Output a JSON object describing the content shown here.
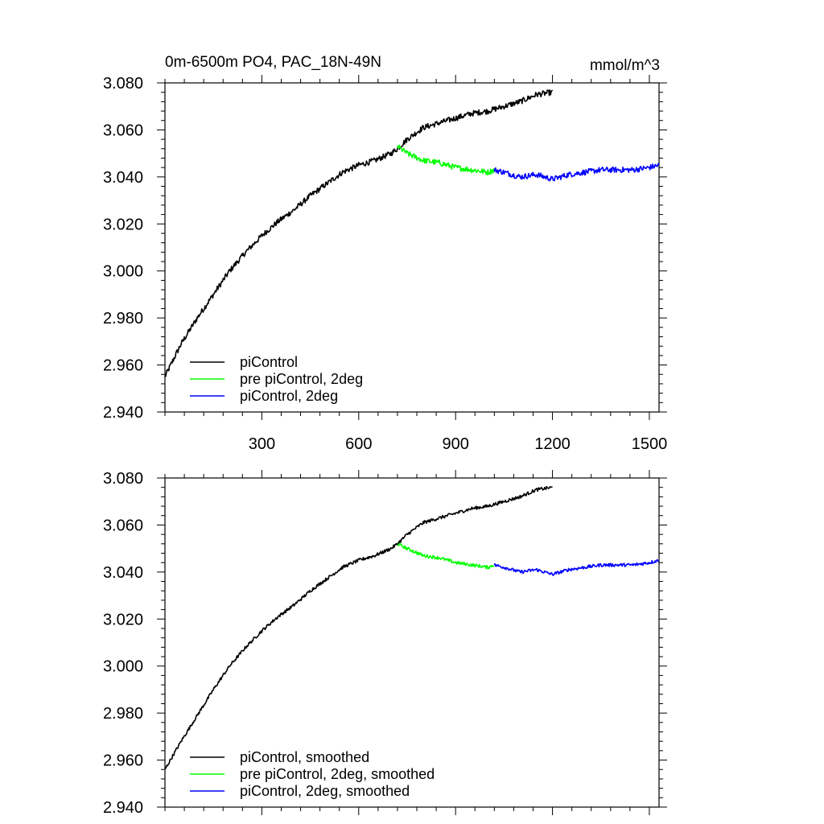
{
  "chart_data": [
    {
      "type": "line",
      "title": "0m-6500m PO4, PAC_18N-49N",
      "units": "mmol/m^3",
      "xlabel": "",
      "ylabel": "",
      "xlim": [
        0,
        1530
      ],
      "ylim": [
        2.94,
        3.08
      ],
      "xticks": [
        300,
        600,
        900,
        1200,
        1500
      ],
      "xtick_labels": [
        "300",
        "600",
        "900",
        "1200",
        "1500"
      ],
      "yticks": [
        2.94,
        2.96,
        2.98,
        3.0,
        3.02,
        3.04,
        3.06,
        3.08
      ],
      "ytick_labels": [
        "2.940",
        "2.960",
        "2.980",
        "3.000",
        "3.020",
        "3.040",
        "3.060",
        "3.080"
      ],
      "legend_position": "bottom-left",
      "series": [
        {
          "name": "piControl",
          "color": "#000000",
          "x": [
            0,
            50,
            100,
            150,
            200,
            250,
            300,
            350,
            400,
            450,
            500,
            550,
            600,
            650,
            700,
            720,
            750,
            800,
            850,
            900,
            950,
            1000,
            1050,
            1100,
            1150,
            1200
          ],
          "y": [
            2.955,
            2.969,
            2.98,
            2.99,
            3.0,
            3.008,
            3.015,
            3.021,
            3.026,
            3.032,
            3.037,
            3.042,
            3.045,
            3.047,
            3.05,
            3.052,
            3.056,
            3.061,
            3.063,
            3.065,
            3.067,
            3.068,
            3.07,
            3.072,
            3.075,
            3.076
          ]
        },
        {
          "name": "pre piControl, 2deg",
          "color": "#00ff00",
          "x": [
            720,
            750,
            800,
            850,
            900,
            950,
            1000,
            1020
          ],
          "y": [
            3.053,
            3.05,
            3.047,
            3.046,
            3.044,
            3.043,
            3.042,
            3.043
          ]
        },
        {
          "name": "piControl, 2deg",
          "color": "#0000ff",
          "x": [
            1020,
            1050,
            1100,
            1150,
            1200,
            1250,
            1300,
            1350,
            1400,
            1450,
            1500,
            1530
          ],
          "y": [
            3.043,
            3.042,
            3.04,
            3.041,
            3.039,
            3.041,
            3.042,
            3.043,
            3.043,
            3.043,
            3.044,
            3.045
          ]
        }
      ]
    },
    {
      "type": "line",
      "title": "",
      "xlim": [
        0,
        1530
      ],
      "ylim": [
        2.94,
        3.08
      ],
      "xticks": [
        300,
        600,
        900,
        1200,
        1500
      ],
      "yticks": [
        2.94,
        2.96,
        2.98,
        3.0,
        3.02,
        3.04,
        3.06,
        3.08
      ],
      "ytick_labels": [
        "2.940",
        "2.960",
        "2.980",
        "3.000",
        "3.020",
        "3.040",
        "3.060",
        "3.080"
      ],
      "legend_position": "bottom-left",
      "series": [
        {
          "name": "piControl, smoothed",
          "color": "#000000",
          "x": [
            0,
            50,
            100,
            150,
            200,
            250,
            300,
            350,
            400,
            450,
            500,
            550,
            600,
            650,
            700,
            720,
            750,
            800,
            850,
            900,
            950,
            1000,
            1050,
            1100,
            1150,
            1200
          ],
          "y": [
            2.956,
            2.968,
            2.979,
            2.99,
            3.0,
            3.008,
            3.015,
            3.021,
            3.026,
            3.032,
            3.037,
            3.042,
            3.045,
            3.047,
            3.05,
            3.052,
            3.056,
            3.061,
            3.063,
            3.065,
            3.067,
            3.068,
            3.07,
            3.072,
            3.075,
            3.076
          ]
        },
        {
          "name": "pre piControl, 2deg, smoothed",
          "color": "#00ff00",
          "x": [
            720,
            750,
            800,
            850,
            900,
            950,
            1000,
            1020
          ],
          "y": [
            3.052,
            3.05,
            3.047,
            3.046,
            3.044,
            3.043,
            3.042,
            3.043
          ]
        },
        {
          "name": "piControl, 2deg, smoothed",
          "color": "#0000ff",
          "x": [
            1020,
            1050,
            1100,
            1150,
            1200,
            1250,
            1300,
            1350,
            1400,
            1450,
            1500,
            1530
          ],
          "y": [
            3.043,
            3.042,
            3.04,
            3.041,
            3.039,
            3.041,
            3.042,
            3.043,
            3.043,
            3.043,
            3.044,
            3.045
          ]
        }
      ]
    }
  ]
}
